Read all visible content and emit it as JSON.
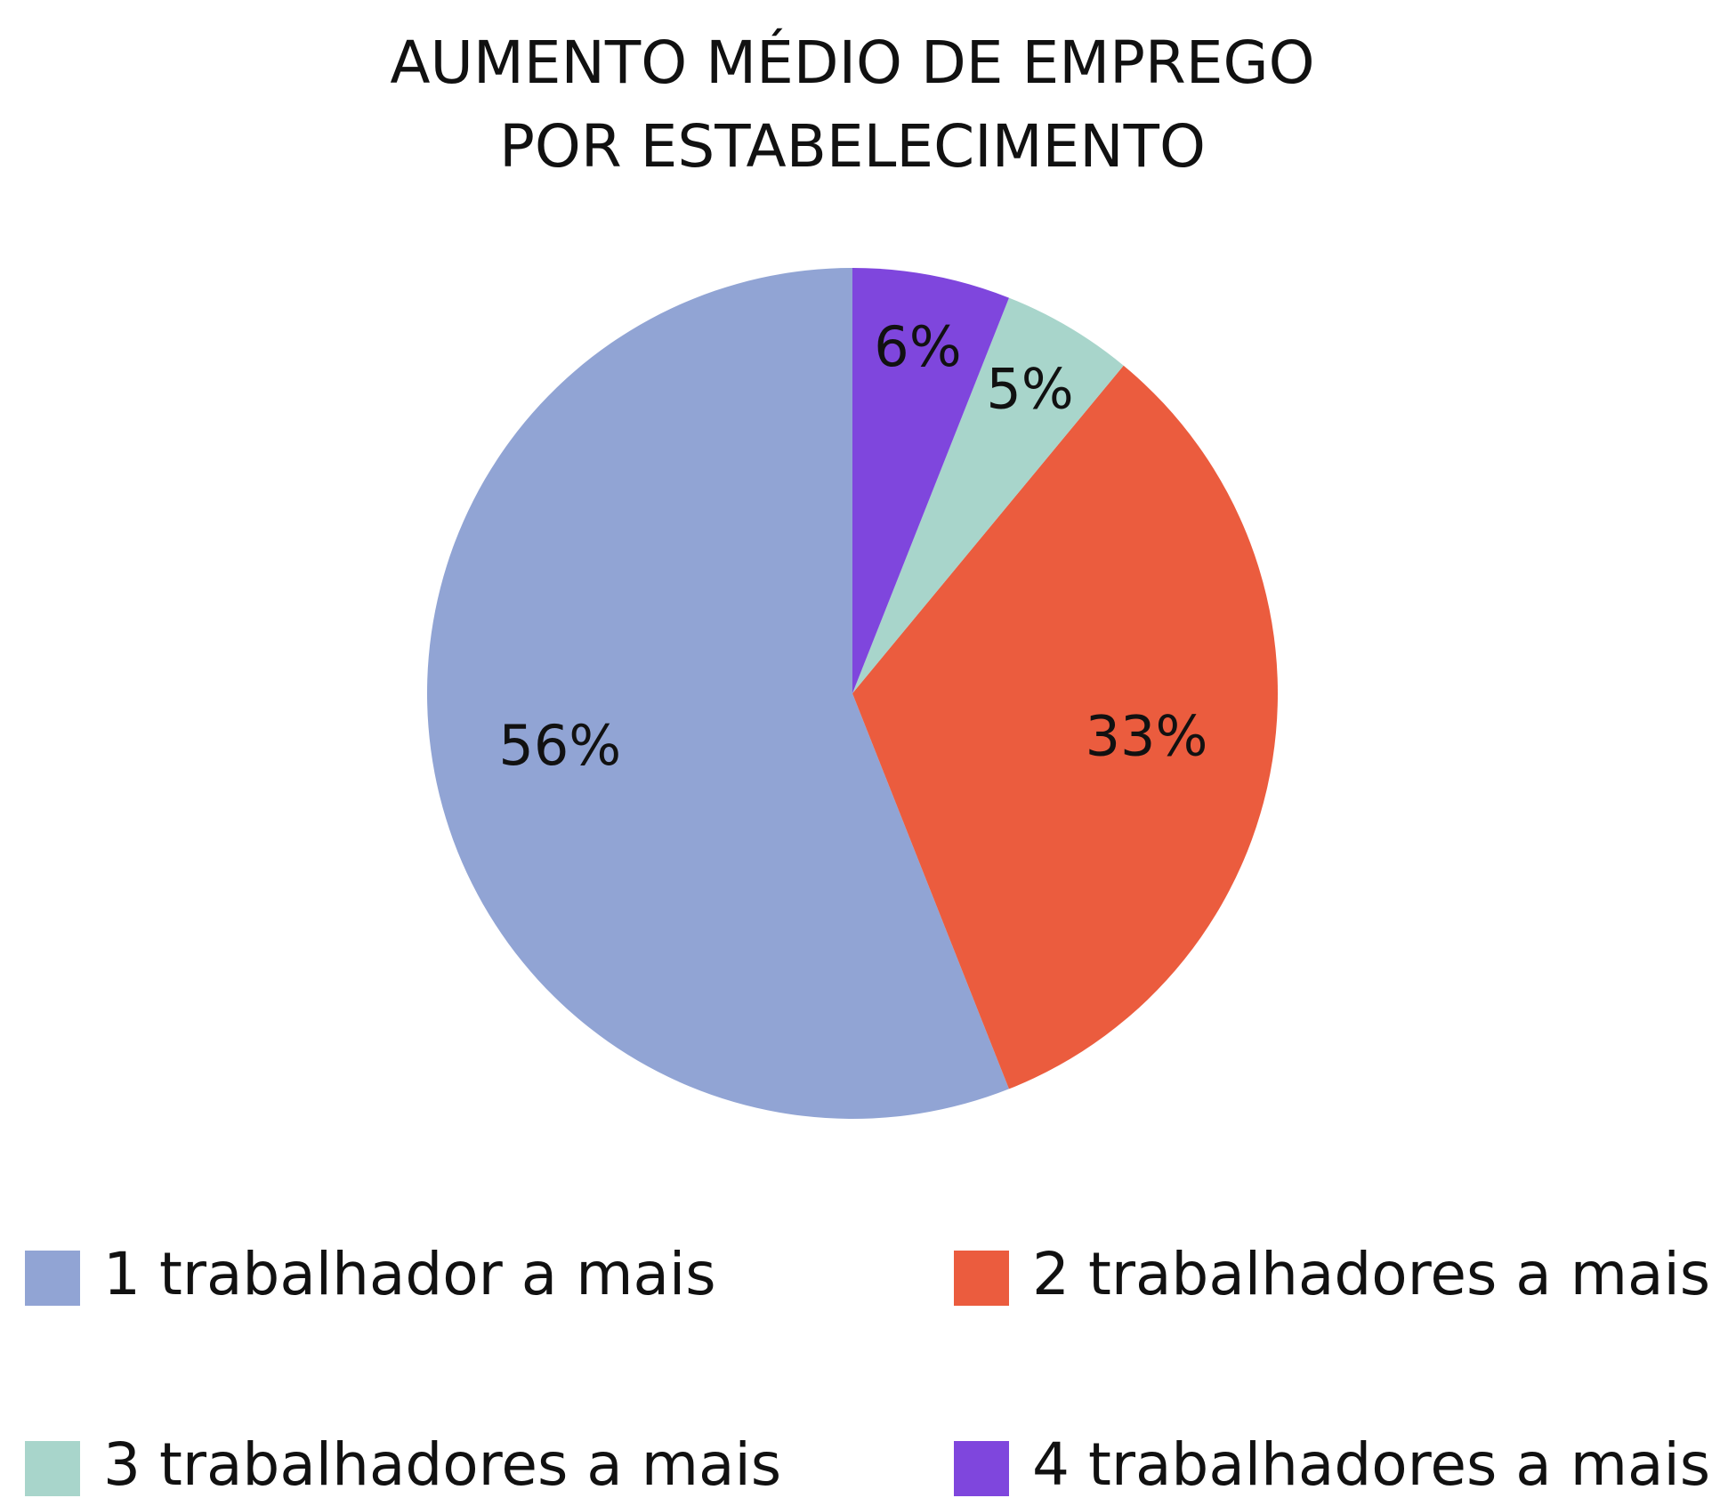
{
  "chart_data": {
    "type": "pie",
    "title": [
      "AUMENTO MÉDIO DE EMPREGO",
      "POR ESTABELECIMENTO"
    ],
    "categories": [
      "1 trabalhador a mais",
      "2 trabalhadores a mais",
      "3 trabalhadores a mais",
      "4 trabalhadores a mais"
    ],
    "values": [
      56,
      33,
      5,
      6
    ],
    "value_labels": [
      "56%",
      "33%",
      "5%",
      "6%"
    ],
    "colors": [
      "#91a4d4",
      "#eb5c3e",
      "#a8d5cb",
      "#7f46dd"
    ],
    "direction": "counterclockwise",
    "legend": "bottom"
  }
}
